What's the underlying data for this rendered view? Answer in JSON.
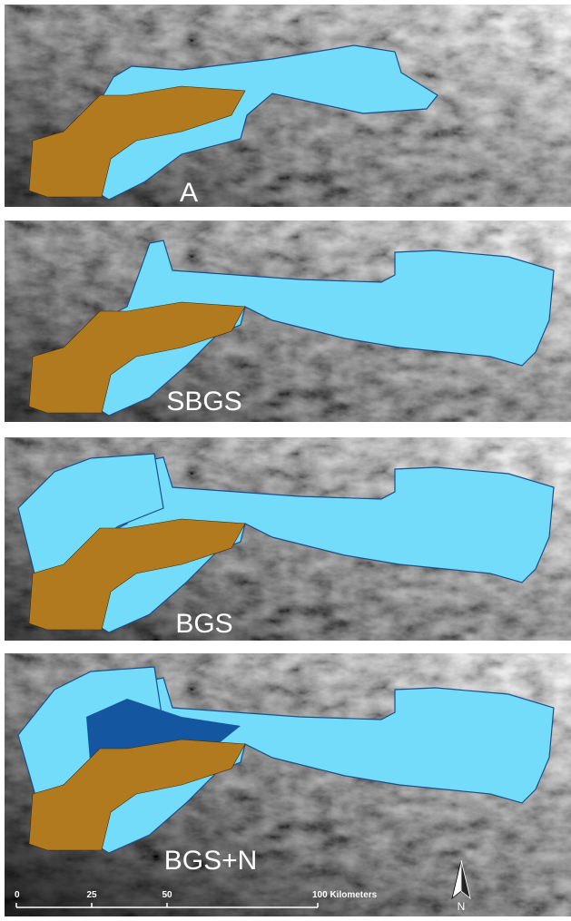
{
  "panels": [
    {
      "label": "A"
    },
    {
      "label": "SBGS"
    },
    {
      "label": "BGS"
    },
    {
      "label": "BGS+N"
    }
  ],
  "scale_bar": {
    "ticks": [
      0,
      25,
      50,
      {
        "value": 100,
        "label": "100 Kilometers"
      }
    ]
  },
  "north_arrow": {
    "label": "N"
  }
}
